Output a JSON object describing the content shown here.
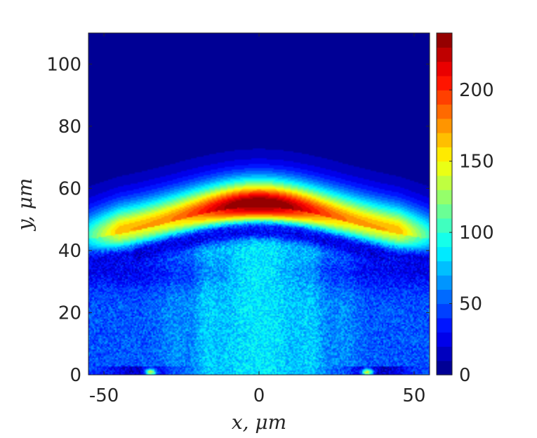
{
  "chart_data": {
    "type": "heatmap",
    "xlabel": "x, μm",
    "ylabel": "y, μm",
    "xlim": [
      -55,
      55
    ],
    "ylim": [
      0,
      110
    ],
    "x_ticks": [
      -50,
      0,
      50
    ],
    "y_ticks": [
      0,
      20,
      40,
      60,
      80,
      100
    ],
    "colorbar": {
      "range": [
        0,
        240
      ],
      "ticks": [
        0,
        50,
        100,
        150,
        200
      ],
      "levels": 24,
      "colormap": "jet"
    },
    "features": [
      {
        "name": "arc",
        "apex": [
          0,
          54
        ],
        "peak_value": 215,
        "edges_y": 42
      },
      {
        "name": "lower region",
        "y_range": [
          0,
          35
        ],
        "center_value": 85,
        "side_value": 50
      },
      {
        "name": "dark band",
        "center_y": 46,
        "value": 15
      },
      {
        "name": "background above arc",
        "value": 3
      }
    ]
  }
}
